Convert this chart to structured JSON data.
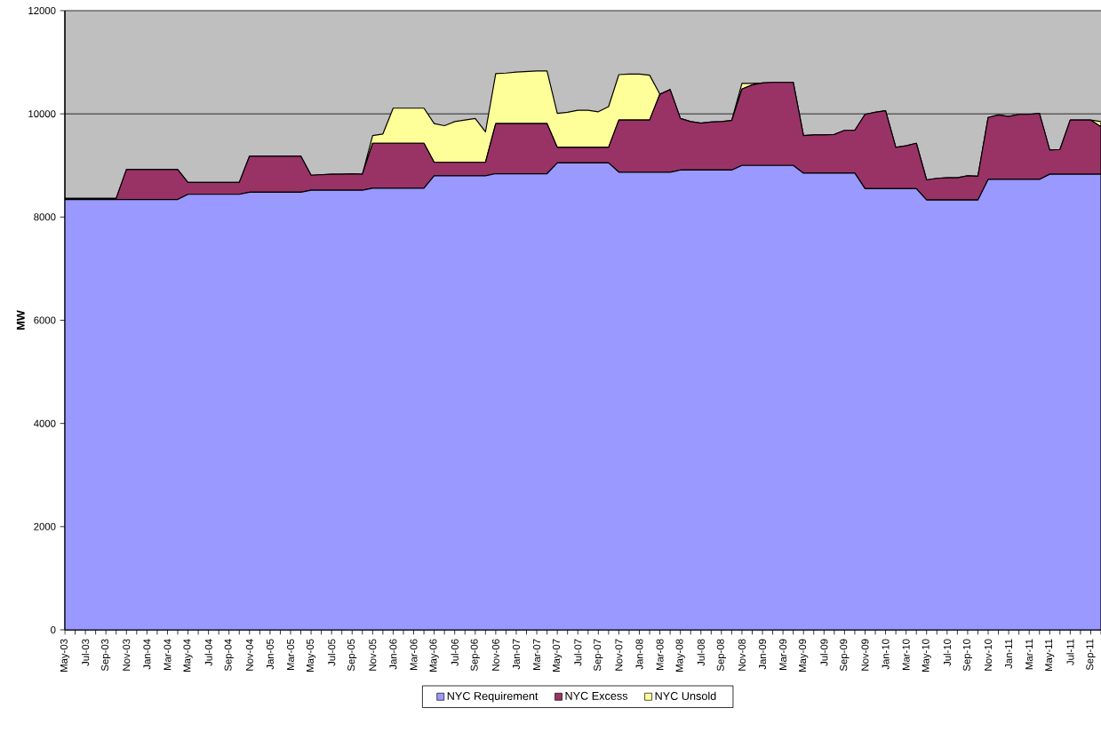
{
  "chart_data": {
    "type": "area",
    "stacked": true,
    "ylabel": "MW",
    "ylim": [
      0,
      12000
    ],
    "yticks": [
      0,
      2000,
      4000,
      6000,
      8000,
      10000,
      12000
    ],
    "grid": "y",
    "legend": "bottom",
    "categories": [
      "May-03",
      null,
      "Jul-03",
      null,
      "Sep-03",
      null,
      "Nov-03",
      null,
      "Jan-04",
      null,
      "Mar-04",
      null,
      "May-04",
      null,
      "Jul-04",
      null,
      "Sep-04",
      null,
      "Nov-04",
      null,
      "Jan-05",
      null,
      "Mar-05",
      null,
      "May-05",
      null,
      "Jul-05",
      null,
      "Sep-05",
      null,
      "Nov-05",
      null,
      "Jan-06",
      null,
      "Mar-06",
      null,
      "May-06",
      null,
      "Jul-06",
      null,
      "Sep-06",
      null,
      "Nov-06",
      null,
      "Jan-07",
      null,
      "Mar-07",
      null,
      "May-07",
      null,
      "Jul-07",
      null,
      "Sep-07",
      null,
      "Nov-07",
      null,
      "Jan-08",
      null,
      "Mar-08",
      null,
      "May-08",
      null,
      "Jul-08",
      null,
      "Sep-08",
      null,
      "Nov-08",
      null,
      "Jan-09",
      null,
      "Mar-09",
      null,
      "May-09",
      null,
      "Jul-09",
      null,
      "Sep-09",
      null,
      "Nov-09",
      null,
      "Jan-10",
      null,
      "Mar-10",
      null,
      "May-10",
      null,
      "Jul-10",
      null,
      "Sep-10",
      null,
      "Nov-10",
      null,
      "Jan-11",
      null,
      "Mar-11",
      null,
      "May-11",
      null,
      "Jul-11",
      null,
      "Sep-11",
      null
    ],
    "series": [
      {
        "name": "NYC Requirement",
        "color": "#9999ff",
        "values": [
          8340,
          8340,
          8340,
          8340,
          8340,
          8340,
          8340,
          8340,
          8340,
          8340,
          8340,
          8340,
          8440,
          8440,
          8440,
          8440,
          8440,
          8440,
          8480,
          8480,
          8480,
          8480,
          8480,
          8480,
          8520,
          8520,
          8520,
          8520,
          8520,
          8520,
          8560,
          8560,
          8560,
          8560,
          8560,
          8560,
          8800,
          8800,
          8800,
          8800,
          8800,
          8800,
          8840,
          8840,
          8840,
          8840,
          8840,
          8840,
          9050,
          9050,
          9050,
          9050,
          9050,
          9050,
          8870,
          8870,
          8870,
          8870,
          8870,
          8870,
          8910,
          8910,
          8910,
          8910,
          8910,
          8910,
          9000,
          9000,
          9000,
          9000,
          9000,
          9000,
          8850,
          8850,
          8850,
          8850,
          8850,
          8850,
          8550,
          8550,
          8550,
          8550,
          8550,
          8550,
          8330,
          8330,
          8330,
          8330,
          8330,
          8330,
          8730,
          8730,
          8730,
          8730,
          8730,
          8730,
          8830,
          8830,
          8830,
          8830,
          8830,
          8830
        ]
      },
      {
        "name": "NYC Excess",
        "color": "#993366",
        "values": [
          20,
          20,
          20,
          20,
          20,
          20,
          580,
          580,
          580,
          580,
          580,
          580,
          230,
          230,
          230,
          230,
          230,
          230,
          700,
          700,
          700,
          700,
          700,
          700,
          290,
          300,
          310,
          310,
          320,
          310,
          870,
          870,
          870,
          870,
          870,
          870,
          260,
          260,
          260,
          260,
          260,
          260,
          970,
          970,
          970,
          970,
          970,
          970,
          300,
          300,
          300,
          300,
          300,
          300,
          1010,
          1010,
          1010,
          1010,
          1510,
          1600,
          1000,
          940,
          910,
          930,
          940,
          960,
          1480,
          1560,
          1600,
          1610,
          1610,
          1610,
          730,
          740,
          740,
          750,
          830,
          830,
          1440,
          1480,
          1510,
          800,
          830,
          880,
          390,
          420,
          430,
          430,
          470,
          460,
          1200,
          1250,
          1220,
          1260,
          1260,
          1280,
          470,
          480,
          1050,
          1050,
          1050,
          920
        ]
      },
      {
        "name": "NYC Unsold",
        "color": "#ffff99",
        "values": [
          0,
          0,
          0,
          0,
          0,
          0,
          0,
          0,
          0,
          0,
          0,
          0,
          0,
          0,
          0,
          0,
          0,
          0,
          0,
          0,
          0,
          0,
          0,
          0,
          0,
          0,
          0,
          0,
          0,
          0,
          150,
          180,
          680,
          680,
          680,
          680,
          750,
          710,
          790,
          820,
          850,
          590,
          970,
          980,
          1000,
          1010,
          1020,
          1020,
          660,
          680,
          720,
          720,
          690,
          790,
          880,
          890,
          890,
          870,
          0,
          0,
          0,
          0,
          0,
          0,
          0,
          0,
          110,
          30,
          0,
          0,
          0,
          0,
          0,
          0,
          0,
          0,
          0,
          0,
          0,
          0,
          0,
          0,
          0,
          0,
          0,
          0,
          0,
          0,
          0,
          0,
          0,
          0,
          0,
          0,
          0,
          0,
          0,
          0,
          0,
          0,
          0,
          100
        ]
      }
    ]
  }
}
